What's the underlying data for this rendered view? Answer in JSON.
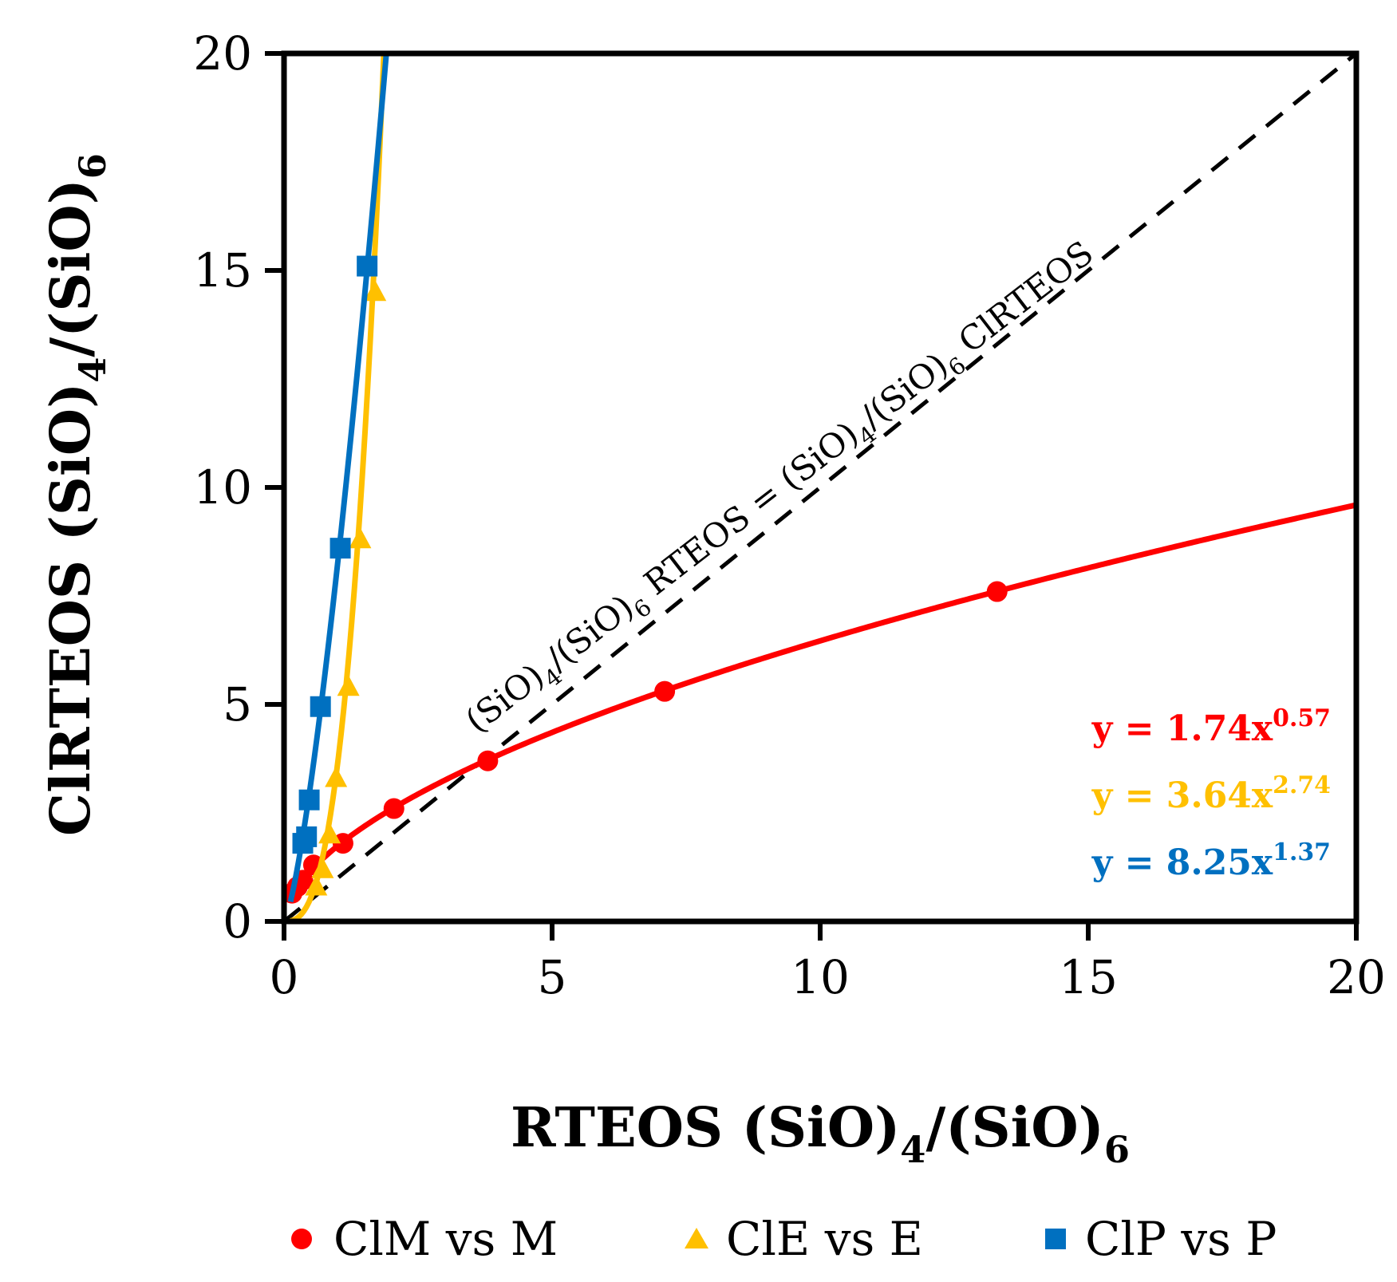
{
  "chart_data": {
    "type": "scatter",
    "x_axis": {
      "range": [
        0,
        20
      ],
      "ticks": [
        "0",
        "5",
        "10",
        "15",
        "20"
      ],
      "label": {
        "main": "RTEOS (SiO)",
        "sub1": "4",
        "mid": "/(SiO)",
        "sub2": "6"
      }
    },
    "y_axis": {
      "range": [
        0,
        20
      ],
      "ticks": [
        "0",
        "5",
        "10",
        "15",
        "20"
      ],
      "label": {
        "main": "ClRTEOS (SiO)",
        "sub1": "4",
        "mid": "/(SiO)",
        "sub2": "6"
      }
    },
    "grid": false,
    "legend_position": "bottom",
    "reference_line": {
      "style": "dashed",
      "color": "#000000",
      "from": [
        0,
        0
      ],
      "to": [
        20,
        20
      ],
      "label": {
        "p1": "(SiO)",
        "s1": "4",
        "p2": "/(SiO)",
        "s2": "6",
        "p3": " RTEOS = (SiO)",
        "s3": "4",
        "p4": "/(SiO)",
        "s4": "6",
        "p5": " ClRTEOS"
      }
    },
    "series": [
      {
        "name": "ClM vs M",
        "color": "#ff0000",
        "marker": "circle",
        "fit": {
          "a": 1.74,
          "b": 0.57
        },
        "equation": {
          "base": "y = 1.74x",
          "exp": "0.57"
        },
        "points": [
          [
            0.15,
            0.65
          ],
          [
            0.25,
            0.8
          ],
          [
            0.35,
            0.95
          ],
          [
            0.55,
            1.3
          ],
          [
            1.1,
            1.8
          ],
          [
            2.05,
            2.6
          ],
          [
            3.8,
            3.7
          ],
          [
            7.1,
            5.3
          ],
          [
            13.3,
            7.6
          ]
        ]
      },
      {
        "name": "ClE vs E",
        "color": "#ffc000",
        "marker": "triangle",
        "fit": {
          "a": 3.64,
          "b": 2.74
        },
        "equation": {
          "base": "y = 3.64x",
          "exp": "2.74"
        },
        "points": [
          [
            0.6,
            0.8
          ],
          [
            0.72,
            1.2
          ],
          [
            0.85,
            2.0
          ],
          [
            0.97,
            3.3
          ],
          [
            1.2,
            5.4
          ],
          [
            1.42,
            8.8
          ],
          [
            1.7,
            14.5
          ]
        ]
      },
      {
        "name": "ClP vs P",
        "color": "#0070c0",
        "marker": "square",
        "fit": {
          "a": 8.25,
          "b": 1.37
        },
        "equation": {
          "base": "y = 8.25x",
          "exp": "1.37"
        },
        "points": [
          [
            0.35,
            1.8
          ],
          [
            0.42,
            1.95
          ],
          [
            0.47,
            2.8
          ],
          [
            0.68,
            4.95
          ],
          [
            1.05,
            8.6
          ],
          [
            1.55,
            15.1
          ]
        ]
      }
    ]
  }
}
